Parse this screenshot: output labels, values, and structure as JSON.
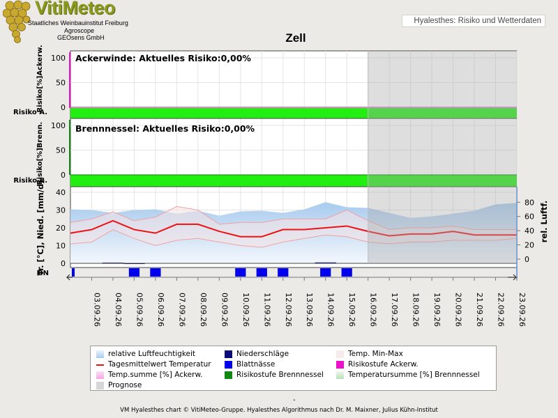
{
  "logo": {
    "title": "VitiMeteo",
    "lines": [
      "Staatliches Weinbauinstitut Freiburg",
      "Agroscope",
      "GEOsens GmbH"
    ]
  },
  "header": {
    "tagline": "Hyalesthes: Risiko und Wetterdaten"
  },
  "chart_data": {
    "type": "line",
    "title": "Zell",
    "dates": [
      "03.09.26",
      "04.09.26",
      "05.09.26",
      "06.09.26",
      "07.09.26",
      "08.09.26",
      "09.09.26",
      "10.09.26",
      "11.09.26",
      "12.09.26",
      "13.09.26",
      "14.09.26",
      "15.09.26",
      "16.09.26",
      "17.09.26",
      "18.09.26",
      "19.09.26",
      "20.09.26",
      "21.09.26",
      "22.09.26",
      "23.09.26"
    ],
    "x_start": "02.09.26",
    "x_end": "23.09.26",
    "forecast_start": "16.09.26",
    "panels": [
      {
        "id": "ackerwinde",
        "heading": "Ackerwinde: Aktuelles Risiko:0,00%",
        "ylabel": "Risiko[%]Ackerw.",
        "row_label": "Risiko A.",
        "ylim": [
          0,
          100
        ],
        "yticks": [
          0,
          50,
          100
        ],
        "risk_percent": 0,
        "risk_band_color": "#22ee11"
      },
      {
        "id": "brennnessel",
        "heading": "Brennnessel: Aktuelles Risiko:0,00%",
        "ylabel": "Risiko[%]Brenn.",
        "row_label": "Risiko B.",
        "ylim": [
          0,
          100
        ],
        "yticks": [
          0,
          50,
          100
        ],
        "risk_percent": 0,
        "risk_band_color": "#22ee11"
      }
    ],
    "weather": {
      "ylabel_left": "Tr. [°C], Nied. [mm/d]",
      "ylabel_right": "rel. Luftf.",
      "ylim_left": [
        0,
        40
      ],
      "yticks_left": [
        0,
        10,
        20,
        30,
        40
      ],
      "ylim_right": [
        -6,
        94
      ],
      "yticks_right": [
        0,
        20,
        40,
        60,
        80
      ],
      "series": [
        {
          "name": "Tagesmittelwert Temperatur",
          "color": "#ee1111",
          "x": [
            "02.09.26",
            "03.09.26",
            "04.09.26",
            "05.09.26",
            "06.09.26",
            "07.09.26",
            "08.09.26",
            "09.09.26",
            "10.09.26",
            "11.09.26",
            "12.09.26",
            "13.09.26",
            "14.09.26",
            "15.09.26",
            "16.09.26",
            "17.09.26",
            "18.09.26",
            "19.09.26",
            "20.09.26",
            "21.09.26",
            "22.09.26",
            "23.09.26"
          ],
          "values": [
            17,
            19,
            24,
            19,
            17,
            22,
            22,
            18,
            15,
            15,
            19,
            19,
            20,
            21,
            18,
            15.5,
            16.5,
            16.5,
            18,
            16,
            16,
            16
          ]
        },
        {
          "name": "Temp. Max",
          "color": "#f2a0a0",
          "x": [
            "02.09.26",
            "03.09.26",
            "04.09.26",
            "05.09.26",
            "06.09.26",
            "07.09.26",
            "08.09.26",
            "09.09.26",
            "10.09.26",
            "11.09.26",
            "12.09.26",
            "13.09.26",
            "14.09.26",
            "15.09.26",
            "16.09.26",
            "17.09.26",
            "18.09.26",
            "19.09.26",
            "20.09.26",
            "21.09.26",
            "22.09.26",
            "23.09.26"
          ],
          "values": [
            23,
            25,
            29,
            24,
            26,
            32,
            30,
            22,
            23,
            23,
            25,
            25,
            25,
            30,
            24,
            19,
            20,
            20,
            21,
            19,
            19,
            19
          ]
        },
        {
          "name": "Temp. Min",
          "color": "#f2a0a0",
          "x": [
            "02.09.26",
            "03.09.26",
            "04.09.26",
            "05.09.26",
            "06.09.26",
            "07.09.26",
            "08.09.26",
            "09.09.26",
            "10.09.26",
            "11.09.26",
            "12.09.26",
            "13.09.26",
            "14.09.26",
            "15.09.26",
            "16.09.26",
            "17.09.26",
            "18.09.26",
            "19.09.26",
            "20.09.26",
            "21.09.26",
            "22.09.26",
            "23.09.26"
          ],
          "values": [
            11,
            12,
            19,
            14,
            10,
            13,
            14,
            12,
            10,
            9,
            12,
            14,
            16,
            15,
            12,
            11,
            12,
            12,
            13,
            13,
            13,
            14
          ]
        },
        {
          "name": "relative Luftfeuchtigkeit",
          "color": "#a8cbee",
          "axis": "right",
          "x": [
            "02.09.26",
            "03.09.26",
            "04.09.26",
            "05.09.26",
            "06.09.26",
            "07.09.26",
            "08.09.26",
            "09.09.26",
            "10.09.26",
            "11.09.26",
            "12.09.26",
            "13.09.26",
            "14.09.26",
            "15.09.26",
            "16.09.26",
            "17.09.26",
            "18.09.26",
            "19.09.26",
            "20.09.26",
            "21.09.26",
            "22.09.26",
            "23.09.26"
          ],
          "values": [
            70,
            69,
            65,
            69,
            70,
            64,
            68,
            61,
            67,
            68,
            65,
            70,
            80,
            73,
            72,
            65,
            58,
            60,
            64,
            68,
            77,
            79
          ]
        },
        {
          "name": "Niederschläge",
          "color": "#0a0a7a",
          "x": [
            "04.09.26",
            "05.09.26",
            "14.09.26"
          ],
          "values": [
            0.4,
            0.2,
            0.5
          ]
        }
      ]
    },
    "blattnaesse": {
      "row_label": "BN",
      "color": "#0000ee",
      "x": [
        "02.09.26",
        "05.09.26",
        "06.09.26",
        "10.09.26",
        "11.09.26",
        "12.09.26",
        "14.09.26",
        "15.09.26"
      ]
    },
    "legend": {
      "entries": [
        {
          "label": "relative Luftfeuchtigkeit",
          "color": "#a8cbee"
        },
        {
          "label": "Niederschläge",
          "color": "#0a0a7a"
        },
        {
          "label": "Temp. Min-Max",
          "color": "#f7eaea"
        },
        {
          "label": "Tagesmittelwert Temperatur",
          "color": "#ee1111"
        },
        {
          "label": "Blattnässe",
          "color": "#0000ee"
        },
        {
          "label": "Risikostufe Ackerw.",
          "color": "#ee11cc"
        },
        {
          "label": "Temp.summe [%] Ackerw.",
          "color": "#f4a8e4"
        },
        {
          "label": "Risikostufe Brennnessel",
          "color": "#118811"
        },
        {
          "label": "Temperatursumme [%] Brennnessel",
          "color": "#b8e0b8"
        },
        {
          "label": "Prognose",
          "color": "#d6d6d6"
        }
      ]
    }
  },
  "footer": {
    "dash": "-",
    "credit": "VM Hyalesthes chart © VitiMeteo-Gruppe. Hyalesthes Algorithmus nach Dr. M. Maixner, Julius Kühn-Institut"
  }
}
